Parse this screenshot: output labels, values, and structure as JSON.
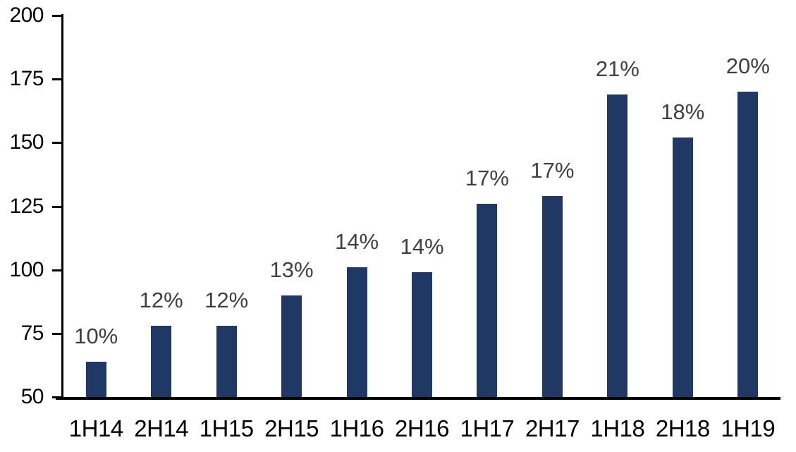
{
  "chart_data": {
    "type": "bar",
    "title": "",
    "xlabel": "",
    "ylabel": "",
    "categories": [
      "1H14",
      "2H14",
      "1H15",
      "2H15",
      "1H16",
      "2H16",
      "1H17",
      "2H17",
      "1H18",
      "2H18",
      "1H19"
    ],
    "values": [
      64,
      78,
      78,
      90,
      101,
      99,
      126,
      129,
      169,
      152,
      170
    ],
    "bar_labels": [
      "10%",
      "12%",
      "12%",
      "13%",
      "14%",
      "14%",
      "17%",
      "17%",
      "21%",
      "18%",
      "20%"
    ],
    "ylim": [
      50,
      200
    ],
    "y_ticks": [
      50,
      75,
      100,
      125,
      150,
      175,
      200
    ],
    "grid": false,
    "legend": false,
    "colors": {
      "bar_fill": "#1F3864",
      "data_label": "#404040",
      "axis_text": "#000000",
      "axis_line": "#000000",
      "background": "#FFFFFF"
    }
  }
}
